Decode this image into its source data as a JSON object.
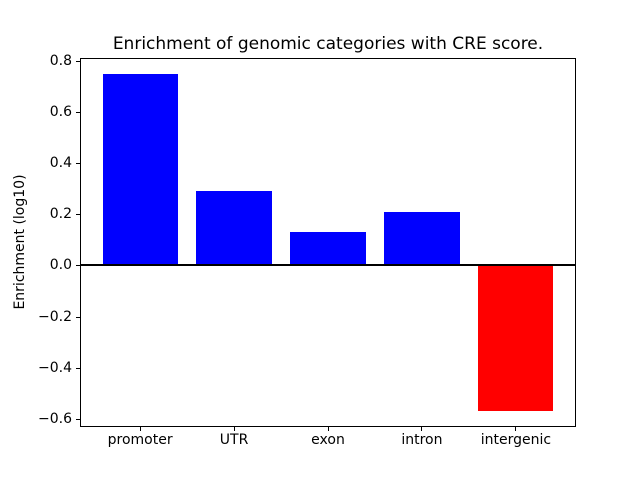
{
  "chart_data": {
    "type": "bar",
    "title": "Enrichment of genomic categories with CRE score.",
    "xlabel": "",
    "ylabel": "Enrichment (log10)",
    "categories": [
      "promoter",
      "UTR",
      "exon",
      "intron",
      "intergenic"
    ],
    "values": [
      0.75,
      0.29,
      0.13,
      0.21,
      -0.57
    ],
    "bar_colors": [
      "#0000ff",
      "#0000ff",
      "#0000ff",
      "#0000ff",
      "#ff0000"
    ],
    "bar_width": 0.8,
    "yticks": [
      0.8,
      0.6,
      0.4,
      0.2,
      0.0,
      -0.2,
      -0.4,
      -0.6
    ],
    "ytick_labels": [
      "0.8",
      "0.6",
      "0.4",
      "0.2",
      "0.0",
      "−0.2",
      "−0.4",
      "−0.6"
    ],
    "ylim": [
      -0.633,
      0.813
    ],
    "xlim": [
      -0.64,
      4.64
    ],
    "grid": false,
    "legend": null,
    "zero_line": true,
    "axis_color": "#000000",
    "background_color": "#ffffff"
  }
}
